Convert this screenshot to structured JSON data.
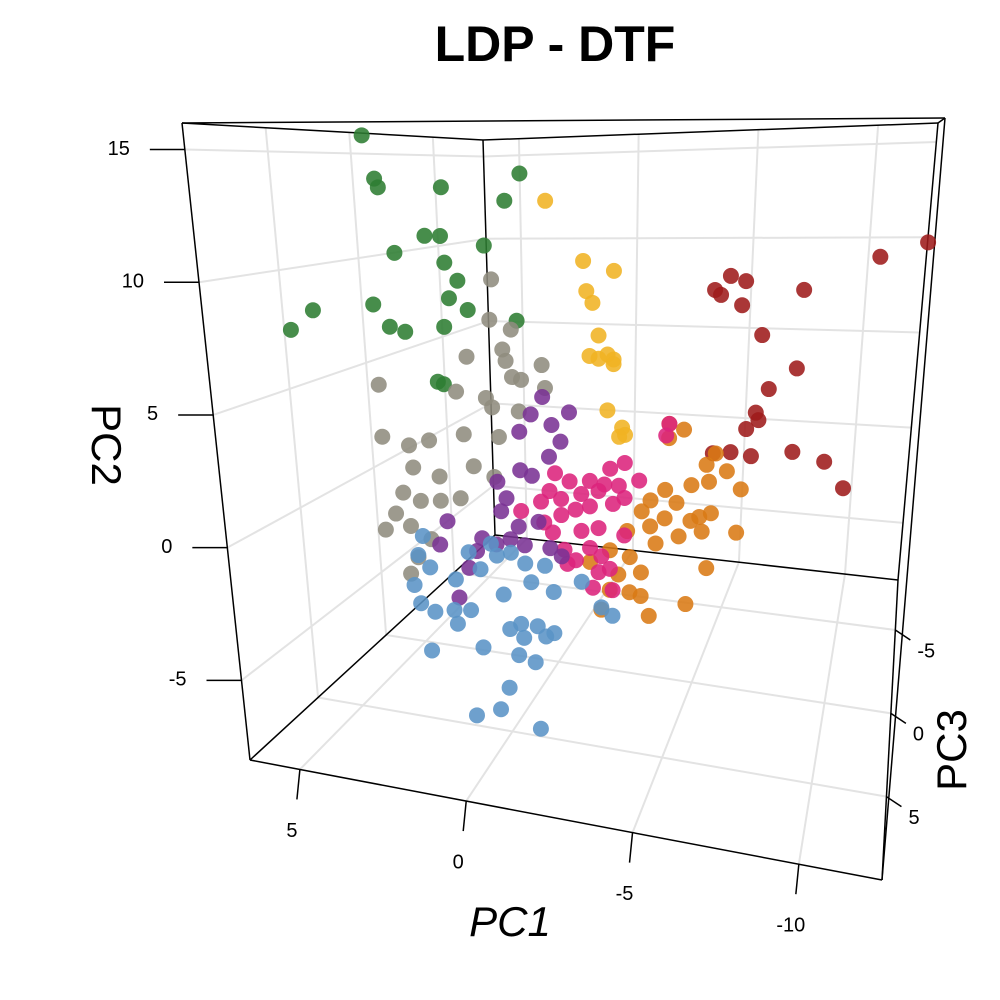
{
  "chart_data": {
    "type": "scatter3d",
    "title": "LDP - DTF",
    "xlabel": "PC1",
    "ylabel": "PC2",
    "zlabel": "PC3",
    "xlim": [
      6.5,
      -12.5
    ],
    "xticks": [
      5,
      0,
      -5,
      -10
    ],
    "ylim": [
      -8,
      16
    ],
    "yticks": [
      -5,
      0,
      5,
      10,
      15
    ],
    "zlim": [
      -8,
      10
    ],
    "zticks": [
      -5,
      0,
      5
    ],
    "grid": true,
    "series": [
      {
        "color": "#2e7d32",
        "x": [
          5.6,
          5.3,
          5.2,
          3.2,
          1.2,
          0.7,
          3.8,
          3.3,
          1.9,
          4.8,
          3.2,
          2.8,
          3.1,
          6.3,
          5.6,
          6.3,
          5.1,
          4.6,
          2.5,
          3.3,
          0.9,
          3.6,
          3.4
        ],
        "y": [
          15.8,
          13.8,
          13.4,
          13.4,
          12.8,
          14.0,
          11.2,
          11.2,
          10.8,
          10.4,
          10.0,
          9.2,
          8.4,
          8.1,
          8.0,
          7.5,
          7.0,
          6.8,
          7.9,
          7.1,
          7.5,
          4.6,
          4.5
        ],
        "z": [
          1,
          1,
          1,
          1,
          1,
          1,
          1,
          1,
          1,
          1,
          1,
          1,
          1,
          3.5,
          1,
          5,
          1,
          1,
          1,
          1,
          1,
          1,
          1
        ]
      },
      {
        "color": "#8f8c7e",
        "x": [
          1.7,
          1.8,
          1.1,
          1.4,
          1.3,
          2.6,
          0.8,
          0.1,
          0.0,
          1.1,
          5.6,
          3.0,
          2.0,
          1.8,
          0.9,
          2.8,
          1.6,
          5.6,
          4.7,
          4.0,
          3.7,
          2.5,
          1.8,
          4.6,
          5.0,
          4.4,
          5.3,
          5.7,
          3.7,
          3.0,
          4.8,
          4.6,
          4.9,
          4.1
        ],
        "y": [
          9.3,
          7.5,
          7.1,
          6.2,
          5.7,
          5.8,
          4.9,
          5.6,
          4.6,
          5.0,
          4.3,
          4.2,
          4.0,
          3.6,
          3.5,
          2.3,
          2.3,
          1.9,
          1.6,
          1.9,
          0.3,
          0.9,
          0.5,
          0.6,
          -0.6,
          -0.9,
          -1.6,
          -2.4,
          -0.8,
          -0.6,
          -2.1,
          -3.5,
          -4.3,
          -2.6
        ],
        "z": [
          1,
          1,
          1,
          1,
          1,
          1,
          1,
          1,
          1,
          1,
          1,
          1,
          1,
          1,
          1,
          1,
          1,
          1,
          1,
          1,
          1,
          1,
          1,
          1,
          1,
          1,
          1,
          1,
          1,
          1,
          1,
          1,
          1,
          1
        ]
      },
      {
        "color": "#f0b323",
        "x": [
          -0.1,
          -1.3,
          -2.3,
          -1.4,
          -1.6,
          -1.8,
          -1.5,
          -1.8,
          -2.3,
          -2.1,
          -2.3,
          -2.1,
          -2.6,
          -2.7,
          -2.5
        ],
        "y": [
          12.8,
          10.2,
          9.8,
          8.9,
          8.4,
          7.0,
          6.1,
          6.0,
          6.0,
          6.2,
          5.8,
          3.8,
          3.1,
          2.8,
          2.7
        ],
        "z": [
          1,
          1,
          1,
          1,
          1,
          1,
          1,
          1,
          1,
          1,
          1,
          1,
          1,
          1,
          1
        ]
      },
      {
        "color": "#9e1b1b",
        "x": [
          -12.4,
          -10.9,
          -6.1,
          -6.6,
          -5.6,
          -5.8,
          -6.5,
          -8.5,
          -7.2,
          -8.4,
          -7.5,
          -7.1,
          -6.8,
          -7.2,
          -6.3,
          -7.0,
          -8.4,
          -9.5,
          -10.2,
          -5.7
        ],
        "y": [
          11.2,
          10.6,
          9.7,
          9.5,
          9.1,
          8.9,
          8.5,
          9.2,
          7.3,
          6.0,
          5.1,
          4.1,
          3.4,
          3.8,
          2.4,
          2.3,
          2.6,
          2.3,
          1.3,
          2.3
        ],
        "z": [
          1,
          1,
          1,
          1,
          1,
          1,
          1,
          1,
          1,
          1,
          1,
          1,
          1,
          1,
          1,
          1,
          1,
          1,
          1,
          1
        ]
      },
      {
        "color": "#da7a14",
        "x": [
          -4.2,
          -4.7,
          -4.2,
          -5.8,
          -5.5,
          -6.2,
          -6.7,
          -5.6,
          -5.0,
          -4.1,
          -3.6,
          -4.5,
          -5.3,
          -5.7,
          -4.1,
          -5.0,
          -3.3,
          -2.8,
          -3.6,
          -4.6,
          -5.4,
          -6.6,
          -3.8,
          -2.9,
          -2.2,
          -3.3,
          -2.5,
          -5.6,
          -1.5,
          -2.9,
          -2.2,
          -3.3,
          -4.9,
          -1.9,
          -3.6
        ],
        "y": [
          3.4,
          3.2,
          2.8,
          2.3,
          1.8,
          1.6,
          0.9,
          1.1,
          0.9,
          0.6,
          0.1,
          0.1,
          -0.4,
          -0.2,
          -0.6,
          -0.6,
          -0.4,
          -1.3,
          -1.0,
          -1.3,
          -1.0,
          -0.9,
          -1.7,
          -2.4,
          -2.2,
          -3.0,
          -3.2,
          -2.5,
          -2.8,
          -3.9,
          -3.9,
          -4.0,
          -4.1,
          -4.8,
          -4.8
        ],
        "z": [
          1,
          1,
          1,
          1,
          1,
          1,
          1,
          1,
          1,
          1,
          1,
          1,
          1,
          1,
          1,
          1,
          1,
          1,
          1,
          1,
          1,
          1,
          1,
          1,
          1,
          1,
          1,
          1,
          1,
          1,
          1,
          1,
          1,
          1,
          1
        ]
      },
      {
        "color": "#dc237c",
        "x": [
          -4.2,
          -4.1,
          -2.7,
          -2.2,
          -1.5,
          -2.0,
          -2.5,
          -1.8,
          -0.8,
          -1.2,
          -0.5,
          -0.1,
          -2.3,
          -1.5,
          -1.0,
          -0.5,
          0.1,
          -1.8,
          -2.7,
          -3.2,
          -1.2,
          -0.6,
          -1.5,
          -1.9,
          -1.0,
          -2.2,
          -1.6,
          -2.3,
          -2.7,
          0.2,
          -0.3,
          0.9,
          -0.2,
          -0.7,
          -1.8
        ],
        "y": [
          3.4,
          2.9,
          1.6,
          1.3,
          0.7,
          0.6,
          0.6,
          0.3,
          0.6,
          0.1,
          -0.2,
          0.1,
          -0.2,
          -0.4,
          -0.6,
          -0.9,
          -1.3,
          -1.3,
          0.1,
          0.9,
          -1.5,
          -2.4,
          -2.2,
          -2.5,
          -2.8,
          -3.0,
          -3.9,
          -3.9,
          -1.5,
          -0.4,
          0.9,
          -0.9,
          -1.7,
          -3.0,
          -3.2
        ],
        "z": [
          1,
          1,
          1,
          1,
          1,
          1,
          1,
          1,
          1,
          1,
          1,
          1,
          1,
          1,
          1,
          1,
          1,
          1,
          1,
          1,
          1,
          1,
          1,
          1,
          1,
          1,
          1,
          1,
          1,
          1,
          1,
          1,
          1,
          1,
          1
        ]
      },
      {
        "color": "#7a3294",
        "x": [
          0.1,
          -0.8,
          0.5,
          -0.2,
          0.9,
          -0.5,
          -0.1,
          0.9,
          0.5,
          1.7,
          1.4,
          1.6,
          0.3,
          1.0,
          -0.1,
          -0.5,
          0.8,
          1.3,
          1.8,
          3.5,
          2.3,
          2.8,
          2.5,
          3.2,
          3.8
        ],
        "y": [
          4.2,
          3.6,
          3.4,
          3.0,
          2.6,
          2.3,
          1.6,
          0.9,
          0.7,
          0.3,
          -0.4,
          -1.0,
          -1.3,
          -1.6,
          -2.4,
          -2.7,
          -2.4,
          -2.2,
          -2.5,
          -1.7,
          -2.3,
          -3.7,
          -2.9,
          -5.1,
          -2.8
        ],
        "z": [
          1,
          1,
          1,
          1,
          1,
          1,
          1,
          1,
          1,
          1,
          1,
          1,
          1,
          1,
          1,
          1,
          1,
          1,
          1,
          1,
          1,
          1,
          1,
          1,
          1
        ]
      },
      {
        "color": "#5a93c6",
        "x": [
          4.4,
          4.6,
          4.2,
          2.0,
          1.8,
          1.3,
          0.8,
          0.1,
          2.8,
          2.4,
          -1.2,
          -1.9,
          -2.3,
          -0.2,
          0.6,
          1.6,
          3.3,
          4.6,
          4.1,
          3.4,
          2.8,
          1.0,
          0.4,
          -0.2,
          3.3,
          1.4,
          0.9,
          0.1,
          2.4,
          1.1,
          0.5,
          4.3,
          -0.1,
          1.0,
          0.2,
          -1.1,
          4.8
        ],
        "y": [
          -2.5,
          -3.4,
          -3.9,
          -2.5,
          -3.0,
          -2.8,
          -3.2,
          -3.2,
          -3.0,
          -3.7,
          -3.7,
          -4.7,
          -5.0,
          -4.3,
          -4.0,
          -4.7,
          -4.3,
          -5.6,
          -5.9,
          -5.7,
          -5.6,
          -5.9,
          -5.9,
          -6.1,
          -6.3,
          -6.2,
          -6.5,
          -6.3,
          -7.2,
          -7.3,
          -7.5,
          -7.7,
          -6.0,
          -7.3,
          -6.9,
          -7.4,
          -4.8
        ],
        "z": [
          1,
          1,
          1,
          1,
          1,
          1,
          1,
          1,
          1,
          1,
          1,
          1,
          1,
          1,
          1,
          1,
          1,
          1,
          1,
          1,
          1,
          1,
          1,
          1,
          1,
          1,
          1,
          1,
          1,
          1,
          1,
          1,
          5.5,
          5.5,
          5.5,
          5.5,
          1
        ]
      }
    ]
  }
}
